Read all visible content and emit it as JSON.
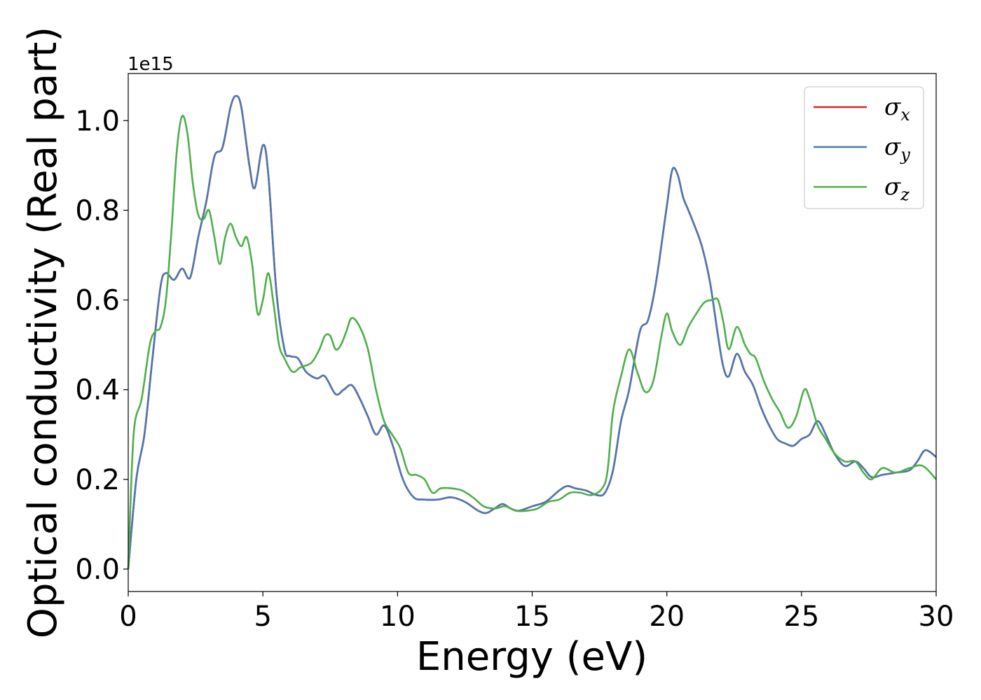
{
  "chart_data": {
    "type": "line",
    "xlabel": "Energy (eV)",
    "ylabel": "Optical conductivity (Real part)",
    "y_offset_text": "1e15",
    "xlim": [
      0,
      30
    ],
    "ylim": [
      -0.05,
      1.105
    ],
    "xticks": [
      0,
      5,
      10,
      15,
      20,
      25,
      30
    ],
    "xtick_labels": [
      "0",
      "5",
      "10",
      "15",
      "20",
      "25",
      "30"
    ],
    "yticks": [
      0.0,
      0.2,
      0.4,
      0.6,
      0.8,
      1.0
    ],
    "ytick_labels": [
      "0.0",
      "0.2",
      "0.4",
      "0.6",
      "0.8",
      "1.0"
    ],
    "grid": false,
    "legend_position": "top-right",
    "series": [
      {
        "name": "σx",
        "legend_base": "σ",
        "legend_sub": "x",
        "color": "#d62728",
        "x": [
          0,
          0.3,
          0.6,
          0.9,
          1.2,
          1.4,
          1.7,
          2.0,
          2.3,
          2.6,
          2.9,
          3.2,
          3.5,
          3.8,
          4.0,
          4.2,
          4.5,
          4.7,
          5.0,
          5.2,
          5.5,
          5.8,
          6.0,
          6.3,
          6.6,
          7.0,
          7.3,
          7.7,
          8.0,
          8.3,
          8.6,
          8.9,
          9.2,
          9.5,
          9.8,
          10.2,
          10.6,
          11.0,
          11.5,
          12.0,
          12.5,
          13.0,
          13.3,
          13.6,
          13.9,
          14.2,
          14.5,
          15.0,
          15.5,
          16.0,
          16.3,
          16.6,
          17.0,
          17.4,
          17.7,
          18.0,
          18.3,
          18.6,
          19.0,
          19.3,
          19.6,
          20.0,
          20.2,
          20.4,
          20.6,
          20.8,
          21.0,
          21.3,
          21.6,
          21.9,
          22.1,
          22.3,
          22.6,
          22.9,
          23.2,
          23.5,
          23.8,
          24.1,
          24.4,
          24.7,
          25.0,
          25.3,
          25.6,
          25.9,
          26.2,
          26.6,
          27.0,
          27.3,
          27.6,
          28.0,
          28.5,
          29.0,
          29.3,
          29.6,
          30.0
        ],
        "y": [
          0,
          0.2,
          0.3,
          0.47,
          0.63,
          0.66,
          0.645,
          0.67,
          0.65,
          0.74,
          0.82,
          0.92,
          0.94,
          1.03,
          1.055,
          1.03,
          0.9,
          0.85,
          0.945,
          0.88,
          0.62,
          0.49,
          0.475,
          0.47,
          0.44,
          0.425,
          0.43,
          0.39,
          0.4,
          0.41,
          0.38,
          0.34,
          0.3,
          0.32,
          0.28,
          0.2,
          0.16,
          0.155,
          0.155,
          0.16,
          0.15,
          0.13,
          0.125,
          0.135,
          0.145,
          0.135,
          0.13,
          0.14,
          0.15,
          0.175,
          0.185,
          0.18,
          0.175,
          0.165,
          0.17,
          0.22,
          0.33,
          0.4,
          0.53,
          0.555,
          0.64,
          0.81,
          0.89,
          0.88,
          0.83,
          0.8,
          0.77,
          0.72,
          0.64,
          0.52,
          0.45,
          0.43,
          0.48,
          0.44,
          0.41,
          0.36,
          0.32,
          0.29,
          0.28,
          0.275,
          0.29,
          0.3,
          0.33,
          0.3,
          0.26,
          0.23,
          0.24,
          0.225,
          0.205,
          0.21,
          0.215,
          0.22,
          0.24,
          0.265,
          0.25
        ]
      },
      {
        "name": "σy",
        "legend_base": "σ",
        "legend_sub": "y",
        "color": "#4c78b0",
        "x": [
          0,
          0.3,
          0.6,
          0.9,
          1.2,
          1.4,
          1.7,
          2.0,
          2.3,
          2.6,
          2.9,
          3.2,
          3.5,
          3.8,
          4.0,
          4.2,
          4.5,
          4.7,
          5.0,
          5.2,
          5.5,
          5.8,
          6.0,
          6.3,
          6.6,
          7.0,
          7.3,
          7.7,
          8.0,
          8.3,
          8.6,
          8.9,
          9.2,
          9.5,
          9.8,
          10.2,
          10.6,
          11.0,
          11.5,
          12.0,
          12.5,
          13.0,
          13.3,
          13.6,
          13.9,
          14.2,
          14.5,
          15.0,
          15.5,
          16.0,
          16.3,
          16.6,
          17.0,
          17.4,
          17.7,
          18.0,
          18.3,
          18.6,
          19.0,
          19.3,
          19.6,
          20.0,
          20.2,
          20.4,
          20.6,
          20.8,
          21.0,
          21.3,
          21.6,
          21.9,
          22.1,
          22.3,
          22.6,
          22.9,
          23.2,
          23.5,
          23.8,
          24.1,
          24.4,
          24.7,
          25.0,
          25.3,
          25.6,
          25.9,
          26.2,
          26.6,
          27.0,
          27.3,
          27.6,
          28.0,
          28.5,
          29.0,
          29.3,
          29.6,
          30.0
        ],
        "y": [
          0,
          0.2,
          0.3,
          0.47,
          0.63,
          0.66,
          0.645,
          0.67,
          0.65,
          0.74,
          0.82,
          0.92,
          0.94,
          1.03,
          1.055,
          1.03,
          0.9,
          0.85,
          0.945,
          0.88,
          0.62,
          0.49,
          0.475,
          0.47,
          0.44,
          0.425,
          0.43,
          0.39,
          0.4,
          0.41,
          0.38,
          0.34,
          0.3,
          0.32,
          0.28,
          0.2,
          0.16,
          0.155,
          0.155,
          0.16,
          0.15,
          0.13,
          0.125,
          0.135,
          0.145,
          0.135,
          0.13,
          0.14,
          0.15,
          0.175,
          0.185,
          0.18,
          0.175,
          0.165,
          0.17,
          0.22,
          0.33,
          0.4,
          0.53,
          0.555,
          0.64,
          0.81,
          0.89,
          0.88,
          0.83,
          0.8,
          0.77,
          0.72,
          0.64,
          0.52,
          0.45,
          0.43,
          0.48,
          0.44,
          0.41,
          0.36,
          0.32,
          0.29,
          0.28,
          0.275,
          0.29,
          0.3,
          0.33,
          0.3,
          0.26,
          0.23,
          0.24,
          0.225,
          0.205,
          0.21,
          0.215,
          0.22,
          0.24,
          0.265,
          0.25
        ]
      },
      {
        "name": "σz",
        "legend_base": "σ",
        "legend_sub": "z",
        "color": "#4daf4a",
        "x": [
          0,
          0.2,
          0.5,
          0.8,
          1.0,
          1.2,
          1.4,
          1.6,
          1.8,
          2.0,
          2.2,
          2.4,
          2.6,
          2.8,
          3.0,
          3.2,
          3.4,
          3.6,
          3.8,
          4.0,
          4.2,
          4.4,
          4.6,
          4.8,
          5.0,
          5.2,
          5.4,
          5.6,
          5.8,
          6.1,
          6.4,
          6.8,
          7.1,
          7.3,
          7.5,
          7.7,
          7.9,
          8.1,
          8.3,
          8.6,
          8.9,
          9.2,
          9.5,
          9.8,
          10.1,
          10.4,
          10.7,
          11.0,
          11.3,
          11.6,
          12.0,
          12.4,
          12.8,
          13.2,
          13.6,
          14.0,
          14.4,
          14.8,
          15.2,
          15.6,
          16.0,
          16.4,
          16.8,
          17.2,
          17.6,
          17.8,
          18.0,
          18.3,
          18.6,
          18.9,
          19.2,
          19.5,
          19.8,
          20.0,
          20.2,
          20.5,
          20.8,
          21.1,
          21.4,
          21.7,
          21.9,
          22.1,
          22.3,
          22.6,
          22.9,
          23.1,
          23.3,
          23.6,
          23.9,
          24.2,
          24.5,
          24.8,
          25.1,
          25.3,
          25.6,
          25.9,
          26.2,
          26.6,
          27.0,
          27.3,
          27.6,
          28.0,
          28.5,
          29.0,
          29.5,
          30.0
        ],
        "y": [
          0,
          0.3,
          0.38,
          0.5,
          0.53,
          0.54,
          0.6,
          0.75,
          0.93,
          1.01,
          0.97,
          0.86,
          0.79,
          0.78,
          0.8,
          0.74,
          0.68,
          0.74,
          0.77,
          0.74,
          0.72,
          0.74,
          0.68,
          0.57,
          0.6,
          0.66,
          0.59,
          0.5,
          0.47,
          0.44,
          0.45,
          0.46,
          0.49,
          0.52,
          0.52,
          0.49,
          0.5,
          0.53,
          0.56,
          0.54,
          0.49,
          0.4,
          0.33,
          0.3,
          0.27,
          0.215,
          0.21,
          0.2,
          0.17,
          0.18,
          0.18,
          0.175,
          0.16,
          0.14,
          0.135,
          0.14,
          0.13,
          0.13,
          0.135,
          0.15,
          0.155,
          0.17,
          0.17,
          0.165,
          0.18,
          0.22,
          0.35,
          0.43,
          0.49,
          0.44,
          0.395,
          0.42,
          0.52,
          0.57,
          0.53,
          0.5,
          0.54,
          0.57,
          0.595,
          0.6,
          0.6,
          0.55,
          0.49,
          0.54,
          0.5,
          0.48,
          0.47,
          0.42,
          0.38,
          0.35,
          0.315,
          0.34,
          0.4,
          0.38,
          0.32,
          0.29,
          0.26,
          0.24,
          0.24,
          0.215,
          0.2,
          0.225,
          0.215,
          0.225,
          0.23,
          0.2
        ]
      }
    ]
  }
}
